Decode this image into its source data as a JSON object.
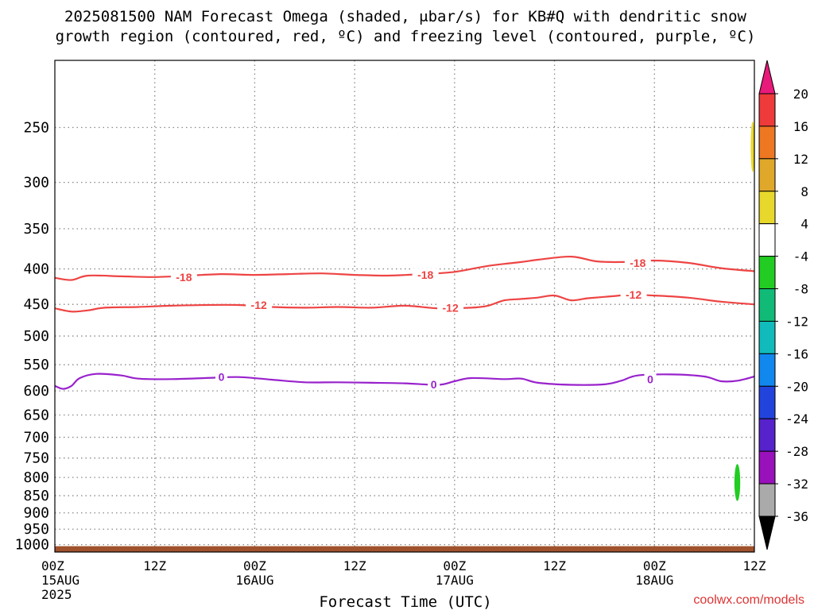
{
  "chart_data": {
    "type": "heatmap",
    "title_line1": "2025081500 NAM Forecast Omega (shaded, μbar/s) for KB#Q with dendritic snow",
    "title_line2": "growth region (contoured, red, ºC) and freezing level (contoured, purple, ºC)",
    "xlabel": "Forecast Time (UTC)",
    "credit": "coolwx.com/models",
    "y_scale": "log-pressure (inverted)",
    "ylim": [
      1025,
      200
    ],
    "y_ticks": [
      250,
      300,
      350,
      400,
      450,
      500,
      550,
      600,
      650,
      700,
      750,
      800,
      850,
      900,
      950,
      1000
    ],
    "xlim": [
      0,
      84
    ],
    "x_ticks": [
      {
        "hour": 0,
        "line1": "00Z",
        "line2": "15AUG",
        "line3": "2025"
      },
      {
        "hour": 12,
        "line1": "12Z",
        "line2": "",
        "line3": ""
      },
      {
        "hour": 24,
        "line1": "00Z",
        "line2": "16AUG",
        "line3": ""
      },
      {
        "hour": 36,
        "line1": "12Z",
        "line2": "",
        "line3": ""
      },
      {
        "hour": 48,
        "line1": "00Z",
        "line2": "17AUG",
        "line3": ""
      },
      {
        "hour": 60,
        "line1": "12Z",
        "line2": "",
        "line3": ""
      },
      {
        "hour": 72,
        "line1": "00Z",
        "line2": "18AUG",
        "line3": ""
      },
      {
        "hour": 84,
        "line1": "12Z",
        "line2": "",
        "line3": ""
      }
    ],
    "grid": true,
    "series": [
      {
        "label": "-18",
        "color": "#ee4444",
        "label_positions": [
          {
            "hour": 15.5,
            "p": 411
          },
          {
            "hour": 44.5,
            "p": 408
          },
          {
            "hour": 70,
            "p": 392
          }
        ],
        "points": [
          [
            0,
            412
          ],
          [
            2,
            415
          ],
          [
            4,
            409
          ],
          [
            8,
            410
          ],
          [
            12,
            411
          ],
          [
            16,
            409
          ],
          [
            20,
            407
          ],
          [
            24,
            408
          ],
          [
            28,
            407
          ],
          [
            32,
            406
          ],
          [
            36,
            408
          ],
          [
            40,
            409
          ],
          [
            44,
            407
          ],
          [
            48,
            404
          ],
          [
            52,
            396
          ],
          [
            56,
            391
          ],
          [
            58,
            388
          ],
          [
            62,
            384
          ],
          [
            65,
            390
          ],
          [
            68,
            391
          ],
          [
            72,
            389
          ],
          [
            76,
            392
          ],
          [
            80,
            399
          ],
          [
            84,
            403
          ]
        ]
      },
      {
        "label": "-12",
        "color": "#ee4444",
        "label_positions": [
          {
            "hour": 24.5,
            "p": 451
          },
          {
            "hour": 47.5,
            "p": 455
          },
          {
            "hour": 69.5,
            "p": 436
          }
        ],
        "points": [
          [
            0,
            456
          ],
          [
            2,
            461
          ],
          [
            4,
            459
          ],
          [
            6,
            455
          ],
          [
            10,
            454
          ],
          [
            14,
            452
          ],
          [
            18,
            451
          ],
          [
            22,
            451
          ],
          [
            26,
            454
          ],
          [
            30,
            455
          ],
          [
            34,
            454
          ],
          [
            38,
            455
          ],
          [
            42,
            452
          ],
          [
            46,
            456
          ],
          [
            50,
            455
          ],
          [
            52,
            452
          ],
          [
            54,
            444
          ],
          [
            56,
            442
          ],
          [
            58,
            440
          ],
          [
            60,
            437
          ],
          [
            62,
            444
          ],
          [
            64,
            441
          ],
          [
            67,
            438
          ],
          [
            69,
            436
          ],
          [
            72,
            437
          ],
          [
            76,
            440
          ],
          [
            80,
            446
          ],
          [
            84,
            450
          ]
        ]
      },
      {
        "label": "0",
        "color": "#9922cc",
        "label_positions": [
          {
            "hour": 20,
            "p": 573
          },
          {
            "hour": 45.5,
            "p": 587
          },
          {
            "hour": 71.5,
            "p": 577
          }
        ],
        "points": [
          [
            0,
            590
          ],
          [
            1,
            596
          ],
          [
            2,
            590
          ],
          [
            3,
            575
          ],
          [
            5,
            567
          ],
          [
            8,
            570
          ],
          [
            10,
            576
          ],
          [
            14,
            577
          ],
          [
            18,
            575
          ],
          [
            22,
            573
          ],
          [
            26,
            578
          ],
          [
            30,
            583
          ],
          [
            34,
            583
          ],
          [
            38,
            584
          ],
          [
            42,
            585
          ],
          [
            46,
            588
          ],
          [
            48,
            581
          ],
          [
            50,
            575
          ],
          [
            54,
            577
          ],
          [
            56,
            576
          ],
          [
            58,
            584
          ],
          [
            62,
            588
          ],
          [
            66,
            587
          ],
          [
            68,
            580
          ],
          [
            70,
            570
          ],
          [
            74,
            568
          ],
          [
            78,
            572
          ],
          [
            80,
            581
          ],
          [
            82,
            580
          ],
          [
            84,
            572
          ]
        ]
      }
    ],
    "shading": [
      {
        "band": "4 to 8",
        "color": "#e8d82c",
        "hour_range": [
          83.6,
          84.0
        ],
        "p_range": [
          245,
          290
        ]
      },
      {
        "band": "-4 to -8",
        "color": "#22cc22",
        "hour_range": [
          81.6,
          82.3
        ],
        "p_range": [
          765,
          865
        ]
      }
    ],
    "terrain": {
      "color": "#a0522d",
      "below_p": 1000
    },
    "colorbar": {
      "label_values": [
        "20",
        "16",
        "12",
        "8",
        "4",
        "-4",
        "-8",
        "-12",
        "-16",
        "-20",
        "-24",
        "-28",
        "-32",
        "-36"
      ],
      "bins": [
        {
          "from": ">20",
          "color": "#e81a7a"
        },
        {
          "from": "16 to 20",
          "color": "#ee3a3a"
        },
        {
          "from": "12 to 16",
          "color": "#ee7722"
        },
        {
          "from": "8 to 12",
          "color": "#e0a82a"
        },
        {
          "from": "4 to 8",
          "color": "#e8d82c"
        },
        {
          "from": "-4 to 4",
          "color": "#ffffff"
        },
        {
          "from": "-8 to -4",
          "color": "#22cc22"
        },
        {
          "from": "-12 to -8",
          "color": "#11bb77"
        },
        {
          "from": "-16 to -12",
          "color": "#11bbbb"
        },
        {
          "from": "-20 to -16",
          "color": "#1188ee"
        },
        {
          "from": "-24 to -20",
          "color": "#2244dd"
        },
        {
          "from": "-28 to -24",
          "color": "#5522cc"
        },
        {
          "from": "-32 to -28",
          "color": "#9911bb"
        },
        {
          "from": "-36 to -32",
          "color": "#aaaaaa"
        },
        {
          "from": "<-36",
          "color": "#000000"
        }
      ]
    }
  }
}
